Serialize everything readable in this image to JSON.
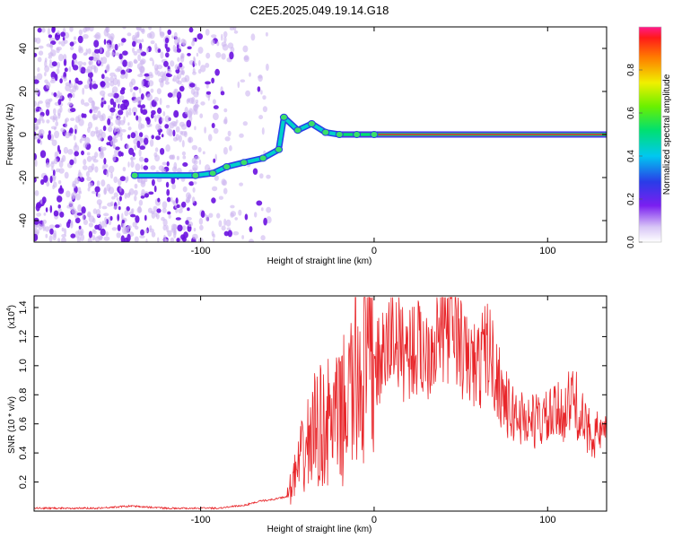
{
  "title": "C2E5.2025.049.19.14.G18",
  "colors": {
    "snr_line": "#e8262a",
    "dense_purple": "#6a11e0",
    "light_purple": "#cdb6f0",
    "center_line": "#e8262a"
  },
  "chart_data": [
    {
      "type": "heatmap",
      "xlabel": "Height of straight line (km)",
      "ylabel": "Frequency (Hz)",
      "xlim": [
        -196,
        134
      ],
      "ylim": [
        -50,
        50
      ],
      "x_ticks": [
        -100,
        0,
        100
      ],
      "y_ticks": [
        -40,
        -20,
        0,
        20,
        40
      ],
      "grid": false,
      "colorbar": {
        "label": "Normalized spectral amplitude",
        "range": [
          0,
          1
        ],
        "ticks": [
          0.0,
          0.2,
          0.4,
          0.6,
          0.8
        ],
        "colormap": "rainbow (white-violet-blue-cyan-green-yellow-red-magenta)"
      },
      "signal_trace": [
        {
          "x": -138,
          "y": -19
        },
        {
          "x": -103,
          "y": -19
        },
        {
          "x": -93,
          "y": -18
        },
        {
          "x": -85,
          "y": -15
        },
        {
          "x": -75,
          "y": -13
        },
        {
          "x": -64,
          "y": -11
        },
        {
          "x": -55,
          "y": -7
        },
        {
          "x": -52,
          "y": 8
        },
        {
          "x": -44,
          "y": 2
        },
        {
          "x": -36,
          "y": 5
        },
        {
          "x": -28,
          "y": 1
        },
        {
          "x": -20,
          "y": 0
        },
        {
          "x": -10,
          "y": 0
        },
        {
          "x": 0,
          "y": 0
        },
        {
          "x": 134,
          "y": 0
        }
      ],
      "noise_region": {
        "x_from": -196,
        "x_to": -60
      }
    },
    {
      "type": "line",
      "xlabel": "Height of straight line (km)",
      "ylabel": "SNR (10 * v/v)",
      "y_scale_note": "(x10",
      "y_scale_exp": "4",
      "xlim": [
        -196,
        134
      ],
      "ylim": [
        0,
        1.48
      ],
      "x_ticks": [
        -100,
        0,
        100
      ],
      "y_ticks": [
        0.2,
        0.4,
        0.6,
        0.8,
        1.0,
        1.2,
        1.4
      ],
      "grid": false,
      "series": [
        {
          "envelope": [
            {
              "x": -196,
              "y": 0.02
            },
            {
              "x": -160,
              "y": 0.02
            },
            {
              "x": -140,
              "y": 0.035
            },
            {
              "x": -120,
              "y": 0.02
            },
            {
              "x": -90,
              "y": 0.02
            },
            {
              "x": -75,
              "y": 0.04
            },
            {
              "x": -65,
              "y": 0.07
            },
            {
              "x": -58,
              "y": 0.08
            },
            {
              "x": -50,
              "y": 0.1
            },
            {
              "x": -42,
              "y": 0.35
            },
            {
              "x": -35,
              "y": 0.55
            },
            {
              "x": -28,
              "y": 0.6
            },
            {
              "x": -20,
              "y": 0.62
            },
            {
              "x": -14,
              "y": 0.8
            },
            {
              "x": -8,
              "y": 0.98
            },
            {
              "x": 0,
              "y": 1.0
            },
            {
              "x": 6,
              "y": 1.05
            },
            {
              "x": 11,
              "y": 1.25
            },
            {
              "x": 16,
              "y": 1.1
            },
            {
              "x": 22,
              "y": 1.12
            },
            {
              "x": 30,
              "y": 1.1
            },
            {
              "x": 37,
              "y": 1.22
            },
            {
              "x": 45,
              "y": 1.32
            },
            {
              "x": 52,
              "y": 1.05
            },
            {
              "x": 60,
              "y": 0.98
            },
            {
              "x": 65,
              "y": 1.15
            },
            {
              "x": 70,
              "y": 0.95
            },
            {
              "x": 78,
              "y": 0.68
            },
            {
              "x": 90,
              "y": 0.62
            },
            {
              "x": 100,
              "y": 0.63
            },
            {
              "x": 110,
              "y": 0.7
            },
            {
              "x": 115,
              "y": 0.78
            },
            {
              "x": 122,
              "y": 0.56
            },
            {
              "x": 134,
              "y": 0.5
            }
          ]
        }
      ]
    }
  ]
}
